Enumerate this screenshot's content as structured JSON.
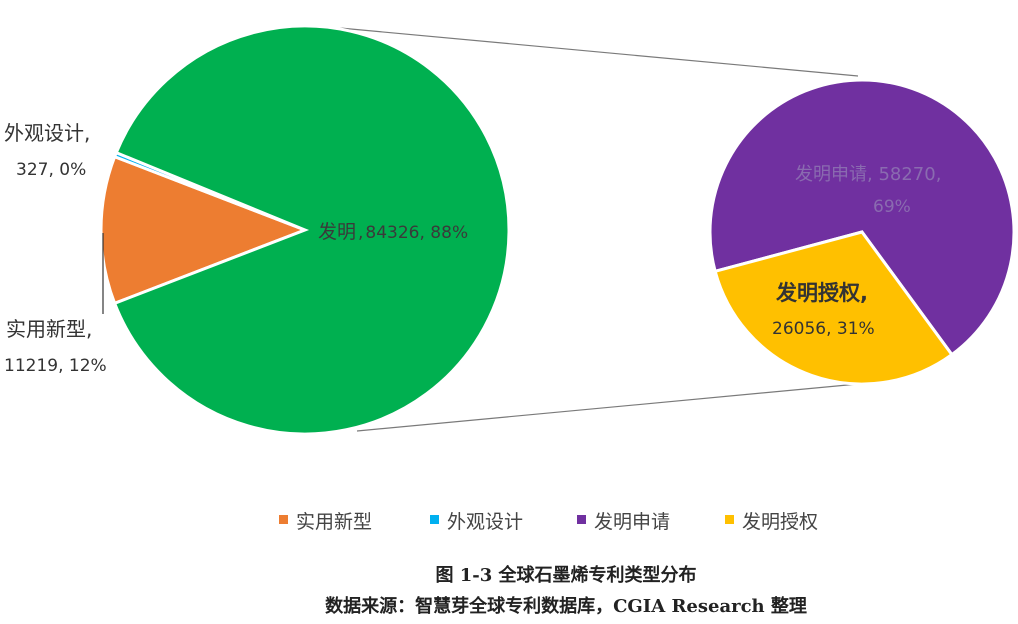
{
  "chart_data": [
    {
      "type": "pie",
      "slices": [
        {
          "name": "发明",
          "value": 84326,
          "pct": "88%",
          "label_lines": [
            "发明",
            "84326, 88%"
          ],
          "color": "#00b050"
        },
        {
          "name": "实用新型",
          "value": 11219,
          "pct": "12%",
          "label_lines": [
            "实用新型,",
            "11219, 12%"
          ],
          "color": "#ed7d31"
        },
        {
          "name": "外观设计",
          "value": 327,
          "pct": "0%",
          "label_lines": [
            "外观设计,",
            "327, 0%"
          ],
          "color": "#00b0f0"
        }
      ]
    },
    {
      "type": "pie",
      "slices": [
        {
          "name": "发明申请",
          "value": 58270,
          "pct": "69%",
          "label_lines": [
            "发明申请, 58270,",
            "69%"
          ],
          "color": "#7030a0"
        },
        {
          "name": "发明授权",
          "value": 26056,
          "pct": "31%",
          "label_lines": [
            "发明授权,",
            "26056, 31%"
          ],
          "color": "#ffc000"
        }
      ]
    }
  ],
  "legend": [
    {
      "label": "实用新型",
      "color": "#ed7d31"
    },
    {
      "label": "外观设计",
      "color": "#00b0f0"
    },
    {
      "label": "发明申请",
      "color": "#7030a0"
    },
    {
      "label": "发明授权",
      "color": "#ffc000"
    }
  ],
  "caption": {
    "title": "图 1-3 全球石墨烯专利类型分布",
    "source": "数据来源：智慧芽全球专利数据库，CGIA Research 整理"
  }
}
